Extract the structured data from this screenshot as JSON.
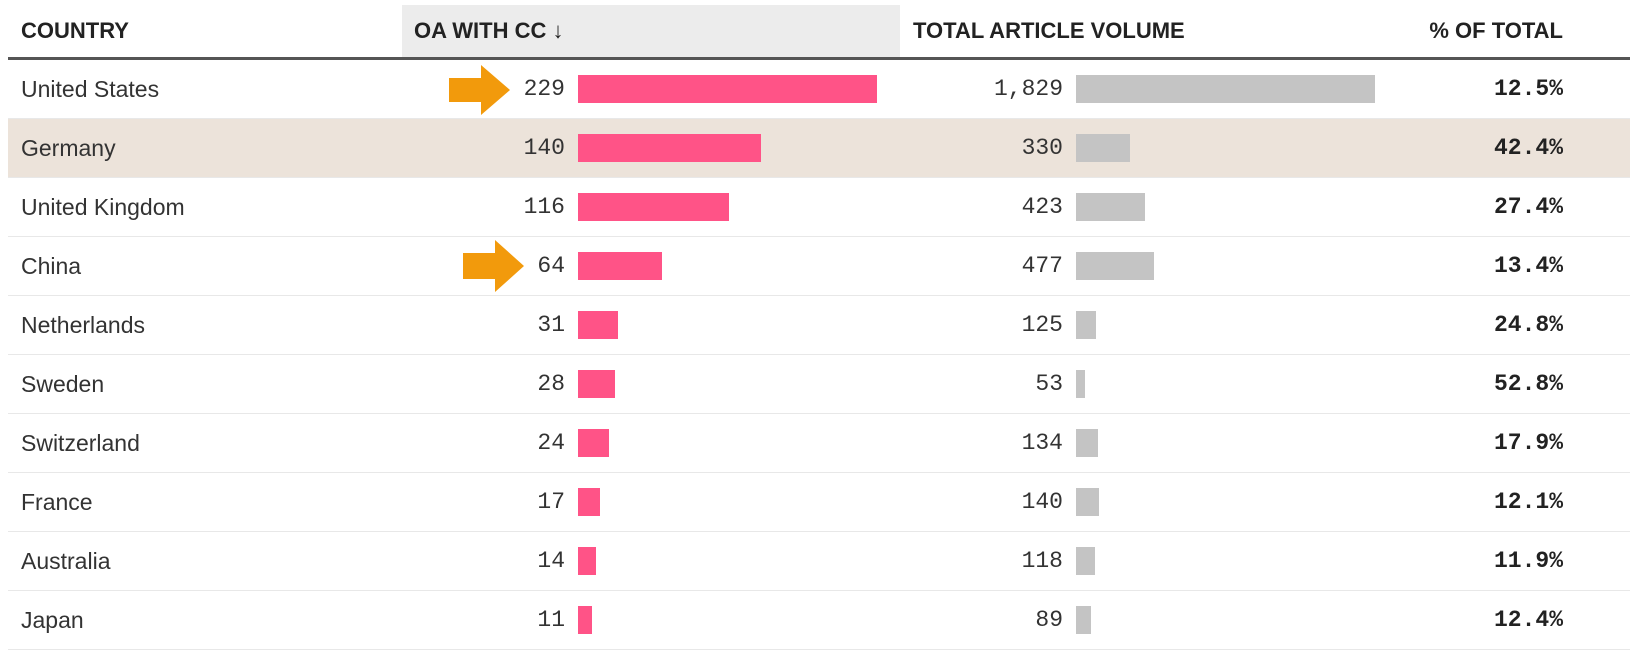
{
  "table": {
    "columns": [
      "COUNTRY",
      "OA WITH CC ↓",
      "TOTAL ARTICLE VOLUME",
      "% OF TOTAL"
    ],
    "highlight_row": 1,
    "oa_color": "#ff5387",
    "total_color": "#c4c4c4",
    "rows": [
      {
        "country": "United States",
        "oa": 229,
        "total": 1829,
        "total_label": "1,829",
        "pct": "12.5%"
      },
      {
        "country": "Germany",
        "oa": 140,
        "total": 330,
        "pct": "42.4%"
      },
      {
        "country": "United Kingdom",
        "oa": 116,
        "total": 423,
        "pct": "27.4%"
      },
      {
        "country": "China",
        "oa": 64,
        "total": 477,
        "pct": "13.4%"
      },
      {
        "country": "Netherlands",
        "oa": 31,
        "total": 125,
        "pct": "24.8%"
      },
      {
        "country": "Sweden",
        "oa": 28,
        "total": 53,
        "pct": "52.8%"
      },
      {
        "country": "Switzerland",
        "oa": 24,
        "total": 134,
        "pct": "17.9%"
      },
      {
        "country": "France",
        "oa": 17,
        "total": 140,
        "pct": "12.1%"
      },
      {
        "country": "Australia",
        "oa": 14,
        "total": 118,
        "pct": "11.9%"
      },
      {
        "country": "Japan",
        "oa": 11,
        "total": 89,
        "pct": "12.4%"
      }
    ]
  }
}
